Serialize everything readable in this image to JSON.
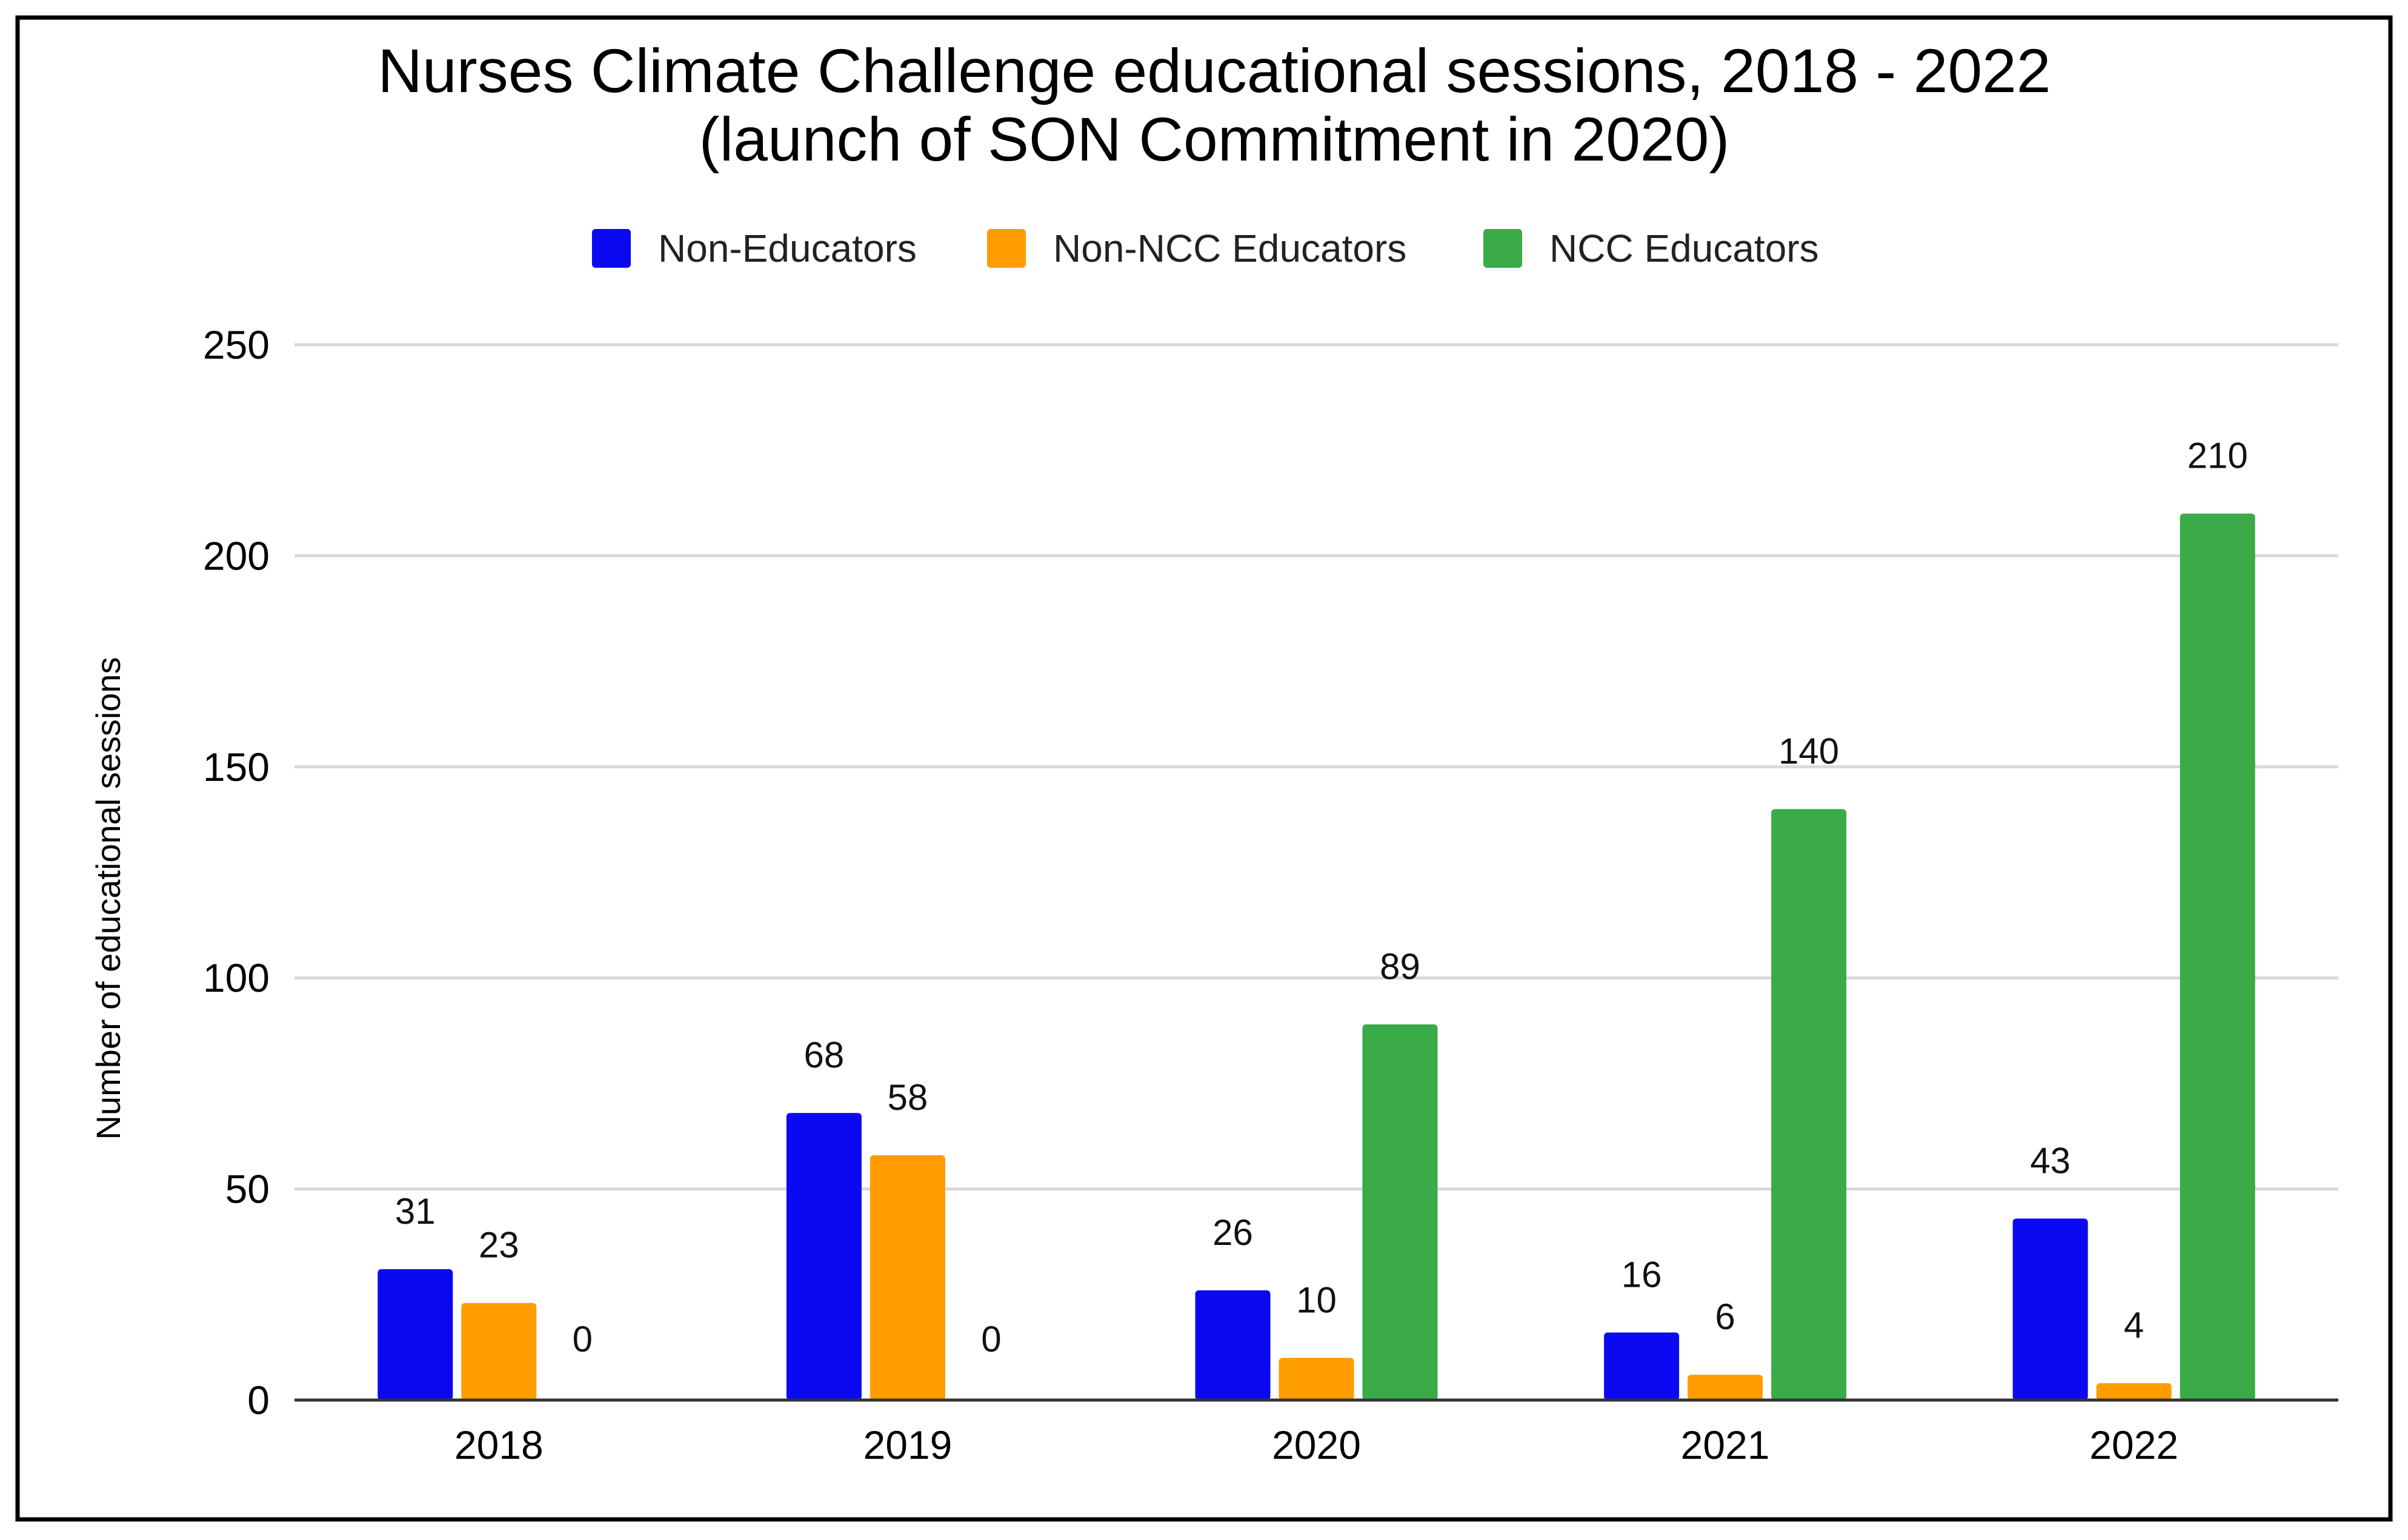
{
  "chart_data": {
    "type": "bar",
    "title": "Nurses Climate Challenge educational sessions, 2018 - 2022",
    "subtitle": "(launch of SON Commitment in 2020)",
    "xlabel": "",
    "ylabel": "Number of educational sessions",
    "categories": [
      "2018",
      "2019",
      "2020",
      "2021",
      "2022"
    ],
    "ylim": [
      0,
      250
    ],
    "yticks": [
      0,
      50,
      100,
      150,
      200,
      250
    ],
    "grid": true,
    "legend_position": "top-center",
    "series": [
      {
        "name": "Non-Educators",
        "color": "#0b09f2",
        "values": [
          31,
          68,
          26,
          16,
          43
        ]
      },
      {
        "name": "Non-NCC Educators",
        "color": "#ff9c00",
        "values": [
          23,
          58,
          10,
          6,
          4
        ]
      },
      {
        "name": "NCC Educators",
        "color": "#3baa48",
        "values": [
          0,
          0,
          89,
          140,
          210
        ]
      }
    ]
  }
}
